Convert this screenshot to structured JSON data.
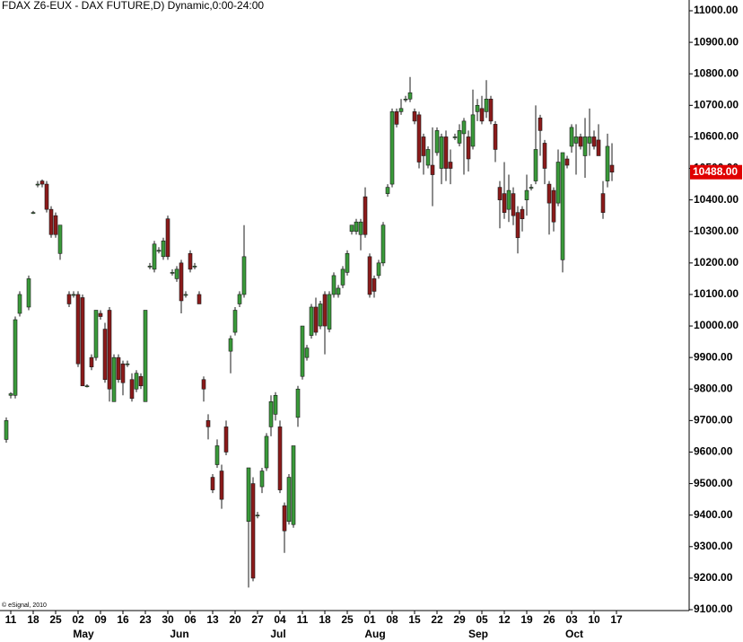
{
  "chart_data": {
    "type": "candlestick",
    "title": "FDAX Z6-EUX - DAX FUTURE,D) Dynamic,0:00-24:00",
    "credit": "© eSignal, 2010",
    "up_color": "#3a9a3a",
    "down_color": "#8b1a1a",
    "outline_color": "#1a1a1a",
    "last_price": {
      "value": 10488,
      "label": "10488.00"
    },
    "last_price_color": "#e00000",
    "xlim": [
      -0.4,
      153.2
    ],
    "ylim": [
      9100,
      11000
    ],
    "yticks": [
      {
        "value": 11000,
        "label": "11000.00"
      },
      {
        "value": 10900,
        "label": "10900.00"
      },
      {
        "value": 10800,
        "label": "10800.00"
      },
      {
        "value": 10700,
        "label": "10700.00"
      },
      {
        "value": 10600,
        "label": "10600.00"
      },
      {
        "value": 10500,
        "label": "10500.00"
      },
      {
        "value": 10400,
        "label": "10400.00"
      },
      {
        "value": 10300,
        "label": "10300.00"
      },
      {
        "value": 10200,
        "label": "10200.00"
      },
      {
        "value": 10100,
        "label": "10100.00"
      },
      {
        "value": 10000,
        "label": "10000.00"
      },
      {
        "value": 9900,
        "label": "9900.00"
      },
      {
        "value": 9800,
        "label": "9800.00"
      },
      {
        "value": 9700,
        "label": "9700.00"
      },
      {
        "value": 9600,
        "label": "9600.00"
      },
      {
        "value": 9500,
        "label": "9500.00"
      },
      {
        "value": 9400,
        "label": "9400.00"
      },
      {
        "value": 9300,
        "label": "9300.00"
      },
      {
        "value": 9200,
        "label": "9200.00"
      },
      {
        "value": 9100,
        "label": "9100.00"
      }
    ],
    "xticks": [
      {
        "value": 2,
        "label": "11"
      },
      {
        "value": 7,
        "label": "18"
      },
      {
        "value": 12,
        "label": "25"
      },
      {
        "value": 17,
        "label": "02"
      },
      {
        "value": 22,
        "label": "09"
      },
      {
        "value": 27,
        "label": "16"
      },
      {
        "value": 32,
        "label": "23"
      },
      {
        "value": 37,
        "label": "30"
      },
      {
        "value": 42,
        "label": "06"
      },
      {
        "value": 47,
        "label": "13"
      },
      {
        "value": 52,
        "label": "20"
      },
      {
        "value": 57,
        "label": "27"
      },
      {
        "value": 62,
        "label": "04"
      },
      {
        "value": 67,
        "label": "11"
      },
      {
        "value": 72,
        "label": "18"
      },
      {
        "value": 77,
        "label": "25"
      },
      {
        "value": 82,
        "label": "01"
      },
      {
        "value": 87,
        "label": "08"
      },
      {
        "value": 92,
        "label": "15"
      },
      {
        "value": 97,
        "label": "22"
      },
      {
        "value": 102,
        "label": "29"
      },
      {
        "value": 107,
        "label": "05"
      },
      {
        "value": 112,
        "label": "12"
      },
      {
        "value": 117,
        "label": "19"
      },
      {
        "value": 122,
        "label": "26"
      },
      {
        "value": 127,
        "label": "03"
      },
      {
        "value": 132,
        "label": "10"
      },
      {
        "value": 137,
        "label": "17"
      }
    ],
    "months": [
      {
        "value": 18.2,
        "label": "May"
      },
      {
        "value": 39.6,
        "label": "Jun"
      },
      {
        "value": 61.6,
        "label": "Jul"
      },
      {
        "value": 83.2,
        "label": "Aug"
      },
      {
        "value": 106.2,
        "label": "Sep"
      },
      {
        "value": 127.6,
        "label": "Oct"
      }
    ],
    "x": [
      1,
      2,
      3,
      4,
      6,
      7,
      8,
      9,
      10,
      11,
      12,
      13,
      15,
      16,
      17,
      18,
      19,
      20,
      21,
      22,
      23,
      24,
      25,
      26,
      27,
      28,
      29,
      30,
      31,
      32,
      33,
      34,
      35,
      36,
      37,
      38,
      39,
      40,
      41,
      42,
      43,
      44,
      45,
      46,
      47,
      48,
      49,
      50,
      51,
      52,
      53,
      54,
      55,
      56,
      57,
      58,
      59,
      60,
      61,
      62,
      63,
      64,
      65,
      66,
      67,
      68,
      69,
      70,
      71,
      72,
      73,
      74,
      75,
      76,
      77,
      78,
      79,
      80,
      81,
      82,
      83,
      84,
      85,
      86,
      87,
      88,
      89,
      90,
      91,
      92,
      93,
      94,
      95,
      96,
      97,
      98,
      99,
      100,
      101,
      102,
      103,
      104,
      105,
      106,
      107,
      108,
      109,
      110,
      111,
      112,
      113,
      114,
      115,
      116,
      117,
      118,
      119,
      120,
      121,
      122,
      123,
      124,
      125,
      126,
      127,
      128,
      129,
      130,
      131,
      132,
      133,
      134,
      135,
      136
    ],
    "open": [
      9640,
      9780,
      9780,
      10040,
      10060,
      10360,
      10450,
      10460,
      10450,
      10370,
      10350,
      10230,
      10100,
      10100,
      10100,
      10090,
      9810,
      9900,
      9900,
      10040,
      9990,
      10050,
      9760,
      9900,
      9880,
      9880,
      9830,
      9800,
      9840,
      9760,
      10190,
      10180,
      10240,
      10220,
      10340,
      10170,
      10150,
      10200,
      10100,
      10230,
      10190,
      10100,
      9830,
      9700,
      9520,
      9560,
      9540,
      9680,
      9920,
      9980,
      10070,
      10100,
      9380,
      9500,
      9400,
      9490,
      9550,
      9680,
      9720,
      9680,
      9430,
      9380,
      9370,
      9710,
      9840,
      9900,
      9970,
      10060,
      10000,
      10100,
      9990,
      10100,
      10100,
      10130,
      10170,
      10300,
      10300,
      10290,
      10410,
      10220,
      10150,
      10160,
      10200,
      10420,
      10450,
      10680,
      10680,
      10720,
      10720,
      10680,
      10670,
      10600,
      10510,
      10510,
      10550,
      10500,
      10600,
      10520,
      10600,
      10580,
      10610,
      10600,
      10570,
      10680,
      10690,
      10680,
      10720,
      10640,
      10440,
      10420,
      10370,
      10420,
      10360,
      10370,
      10400,
      10440,
      10460,
      10660,
      10580,
      10450,
      10430,
      10390,
      10210,
      10530,
      10570,
      10580,
      10600,
      10540,
      10580,
      10600,
      10590,
      10420,
      10460,
      10510
    ],
    "high": [
      9710,
      9790,
      10030,
      10110,
      10160,
      10365,
      10460,
      10465,
      10460,
      10380,
      10360,
      10320,
      10110,
      10110,
      10110,
      10100,
      9815,
      9910,
      10050,
      10050,
      10010,
      10060,
      9910,
      9910,
      9890,
      9890,
      9850,
      9860,
      9850,
      10050,
      10200,
      10270,
      10250,
      10280,
      10350,
      10180,
      10190,
      10210,
      10110,
      10240,
      10200,
      10110,
      9840,
      9720,
      9530,
      9640,
      9560,
      9700,
      9970,
      10060,
      10110,
      10320,
      9550,
      9520,
      9410,
      9550,
      9660,
      9780,
      9790,
      9700,
      9440,
      9530,
      9620,
      9810,
      10000,
      9940,
      10070,
      10090,
      10080,
      10110,
      10110,
      10170,
      10130,
      10190,
      10240,
      10320,
      10340,
      10340,
      10440,
      10230,
      10160,
      10210,
      10330,
      10450,
      10690,
      10690,
      10720,
      10730,
      10790,
      10690,
      10680,
      10610,
      10570,
      10630,
      10630,
      10610,
      10620,
      10560,
      10610,
      10640,
      10660,
      10620,
      10750,
      10720,
      10730,
      10780,
      10730,
      10650,
      10460,
      10520,
      10480,
      10440,
      10380,
      10380,
      10480,
      10450,
      10700,
      10670,
      10590,
      10460,
      10440,
      10560,
      10550,
      10540,
      10640,
      10640,
      10610,
      10660,
      10690,
      10620,
      10640,
      10460,
      10610,
      10580
    ],
    "low": [
      9630,
      9770,
      9770,
      10030,
      10050,
      10355,
      10440,
      10440,
      10360,
      10280,
      10280,
      10210,
      10060,
      10090,
      9870,
      9810,
      9805,
      9860,
      9890,
      10020,
      9820,
      9760,
      9760,
      9820,
      9780,
      9870,
      9760,
      9790,
      9800,
      9760,
      10180,
      10170,
      10230,
      10210,
      10210,
      10160,
      10140,
      10040,
      10090,
      10170,
      10180,
      10070,
      9760,
      9640,
      9470,
      9550,
      9420,
      9590,
      9850,
      9970,
      10060,
      10090,
      9170,
      9190,
      9390,
      9470,
      9540,
      9650,
      9700,
      9470,
      9280,
      9370,
      9360,
      9680,
      9830,
      9890,
      9960,
      9970,
      9990,
      9910,
      9980,
      10090,
      10090,
      10120,
      10160,
      10290,
      10290,
      10240,
      10280,
      10090,
      10090,
      10150,
      10190,
      10410,
      10440,
      10630,
      10670,
      10710,
      10710,
      10640,
      10500,
      10480,
      10500,
      10380,
      10540,
      10450,
      10460,
      10450,
      10590,
      10570,
      10480,
      10490,
      10560,
      10650,
      10640,
      10660,
      10640,
      10520,
      10310,
      10340,
      10330,
      10320,
      10230,
      10300,
      10350,
      10430,
      10450,
      10540,
      10450,
      10290,
      10300,
      10380,
      10170,
      10500,
      10550,
      10480,
      10560,
      10470,
      10540,
      10560,
      10540,
      10340,
      10440,
      10460
    ],
    "close": [
      9700,
      9785,
      10020,
      10100,
      10150,
      10360,
      10450,
      10450,
      10370,
      10290,
      10290,
      10320,
      10070,
      10100,
      9880,
      9810,
      9810,
      9870,
      10050,
      10030,
      9830,
      9800,
      9900,
      9830,
      9820,
      9880,
      9770,
      9850,
      9810,
      10050,
      10190,
      10260,
      10240,
      10270,
      10220,
      10170,
      10180,
      10080,
      10100,
      10180,
      10190,
      10070,
      9800,
      9680,
      9480,
      9620,
      9450,
      9600,
      9960,
      10050,
      10100,
      10220,
      9550,
      9200,
      9400,
      9540,
      9650,
      9760,
      9780,
      9480,
      9350,
      9520,
      9620,
      9800,
      10000,
      9930,
      10060,
      9980,
      10070,
      10000,
      10100,
      10160,
      10120,
      10180,
      10230,
      10320,
      10330,
      10330,
      10290,
      10100,
      10110,
      10200,
      10320,
      10440,
      10680,
      10640,
      10690,
      10720,
      10740,
      10650,
      10520,
      10540,
      10560,
      10480,
      10620,
      10600,
      10500,
      10500,
      10600,
      10620,
      10650,
      10530,
      10670,
      10700,
      10650,
      10720,
      10650,
      10560,
      10400,
      10360,
      10430,
      10350,
      10280,
      10340,
      10430,
      10440,
      10560,
      10620,
      10500,
      10390,
      10330,
      10520,
      10550,
      10510,
      10630,
      10600,
      10570,
      10600,
      10600,
      10570,
      10540,
      10360,
      10570,
      10488
    ]
  }
}
